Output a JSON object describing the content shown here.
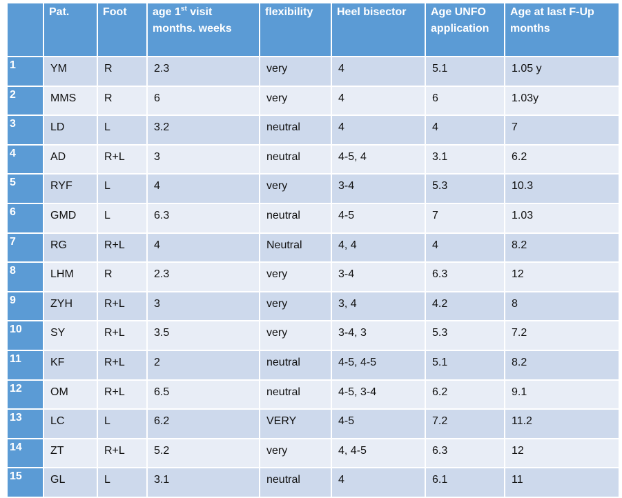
{
  "table": {
    "headers": {
      "num": "",
      "patient": "Pat.",
      "foot": "Foot",
      "age_first_visit_pre": "age 1",
      "age_first_visit_sup": "st",
      "age_first_visit_post": " visit months. weeks",
      "flexibility": "flexibility",
      "heel_bisector": "Heel bisector",
      "age_unfo": "Age UNFO application",
      "age_last_followup": "Age at last F-Up months"
    },
    "rows": [
      {
        "num": "1",
        "patient": "YM",
        "foot": "R",
        "age_first_visit": " 2.3",
        "flexibility": "very",
        "heel_bisector": "4",
        "age_unfo": "5.1",
        "age_last_followup": "1.05 y"
      },
      {
        "num": "2",
        "patient": "MMS",
        "foot": "R",
        "age_first_visit": "6",
        "flexibility": "very",
        "heel_bisector": "4",
        "age_unfo": "6",
        "age_last_followup": "1.03y"
      },
      {
        "num": "3",
        "patient": "LD",
        "foot": "L",
        "age_first_visit": "3.2",
        "flexibility": "neutral",
        "heel_bisector": "4",
        "age_unfo": "4",
        "age_last_followup": "7"
      },
      {
        "num": "4",
        "patient": "AD",
        "foot": "R+L",
        "age_first_visit": "3",
        "flexibility": "neutral",
        "heel_bisector": "4-5, 4",
        "age_unfo": "3.1",
        "age_last_followup": "6.2"
      },
      {
        "num": "5",
        "patient": "RYF",
        "foot": "L",
        "age_first_visit": "4",
        "flexibility": "very",
        "heel_bisector": "3-4",
        "age_unfo": "5.3",
        "age_last_followup": "10.3"
      },
      {
        "num": "6",
        "patient": "GMD",
        "foot": "L",
        "age_first_visit": "6.3",
        "flexibility": "neutral",
        "heel_bisector": "4-5",
        "age_unfo": "7",
        "age_last_followup": "1.03"
      },
      {
        "num": "7",
        "patient": "RG",
        "foot": "R+L",
        "age_first_visit": "4",
        "flexibility": "Neutral",
        "heel_bisector": "4, 4",
        "age_unfo": "4",
        "age_last_followup": "8.2"
      },
      {
        "num": "8",
        "patient": "LHM",
        "foot": "R",
        "age_first_visit": "2.3",
        "flexibility": "very",
        "heel_bisector": "3-4",
        "age_unfo": "6.3",
        "age_last_followup": "12"
      },
      {
        "num": "9",
        "patient": "ZYH",
        "foot": "R+L",
        "age_first_visit": "3",
        "flexibility": "very",
        "heel_bisector": "3, 4",
        "age_unfo": "4.2",
        "age_last_followup": "8"
      },
      {
        "num": "10",
        "patient": "SY",
        "foot": "R+L",
        "age_first_visit": "3.5",
        "flexibility": "very",
        "heel_bisector": "3-4, 3",
        "age_unfo": "5.3",
        "age_last_followup": "7.2"
      },
      {
        "num": "11",
        "patient": "KF",
        "foot": "R+L",
        "age_first_visit": "2",
        "flexibility": "neutral",
        "heel_bisector": "4-5, 4-5",
        "age_unfo": "5.1",
        "age_last_followup": "8.2"
      },
      {
        "num": "12",
        "patient": "OM",
        "foot": "R+L",
        "age_first_visit": "6.5",
        "flexibility": "neutral",
        "heel_bisector": "4-5, 3-4",
        "age_unfo": "6.2",
        "age_last_followup": "9.1"
      },
      {
        "num": "13",
        "patient": "LC",
        "foot": "L",
        "age_first_visit": "6.2",
        "flexibility": "VERY",
        "heel_bisector": "4-5",
        "age_unfo": "7.2",
        "age_last_followup": "11.2"
      },
      {
        "num": "14",
        "patient": "ZT",
        "foot": "R+L",
        "age_first_visit": "5.2",
        "flexibility": "very",
        "heel_bisector": "4, 4-5",
        "age_unfo": "6.3",
        "age_last_followup": "12"
      },
      {
        "num": "15",
        "patient": "GL",
        "foot": "L",
        "age_first_visit": "3.1",
        "flexibility": "neutral",
        "heel_bisector": "4",
        "age_unfo": "6.1",
        "age_last_followup": "11"
      }
    ]
  },
  "colors": {
    "header": "#5b9bd5",
    "row_odd": "#cdd9ec",
    "row_even": "#e8edf6"
  }
}
